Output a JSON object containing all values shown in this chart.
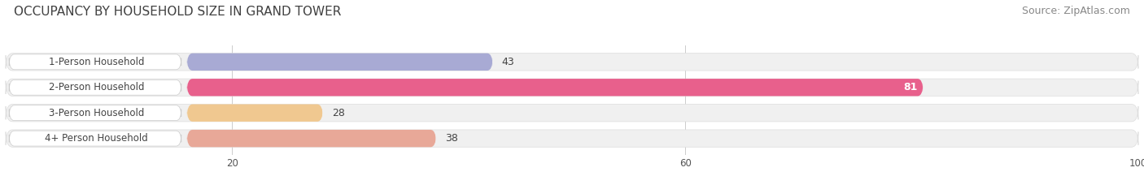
{
  "title": "OCCUPANCY BY HOUSEHOLD SIZE IN GRAND TOWER",
  "source": "Source: ZipAtlas.com",
  "categories": [
    "1-Person Household",
    "2-Person Household",
    "3-Person Household",
    "4+ Person Household"
  ],
  "values": [
    43,
    81,
    28,
    38
  ],
  "bar_colors": [
    "#a8aad4",
    "#e8608c",
    "#f0c890",
    "#e8a898"
  ],
  "label_colors": [
    "#555555",
    "#ffffff",
    "#555555",
    "#555555"
  ],
  "xlim": [
    0,
    100
  ],
  "xticks": [
    20,
    60,
    100
  ],
  "background_color": "#ffffff",
  "row_bg_color": "#f0f0f0",
  "title_fontsize": 11,
  "source_fontsize": 9,
  "label_fontsize": 8.5,
  "value_fontsize": 9
}
